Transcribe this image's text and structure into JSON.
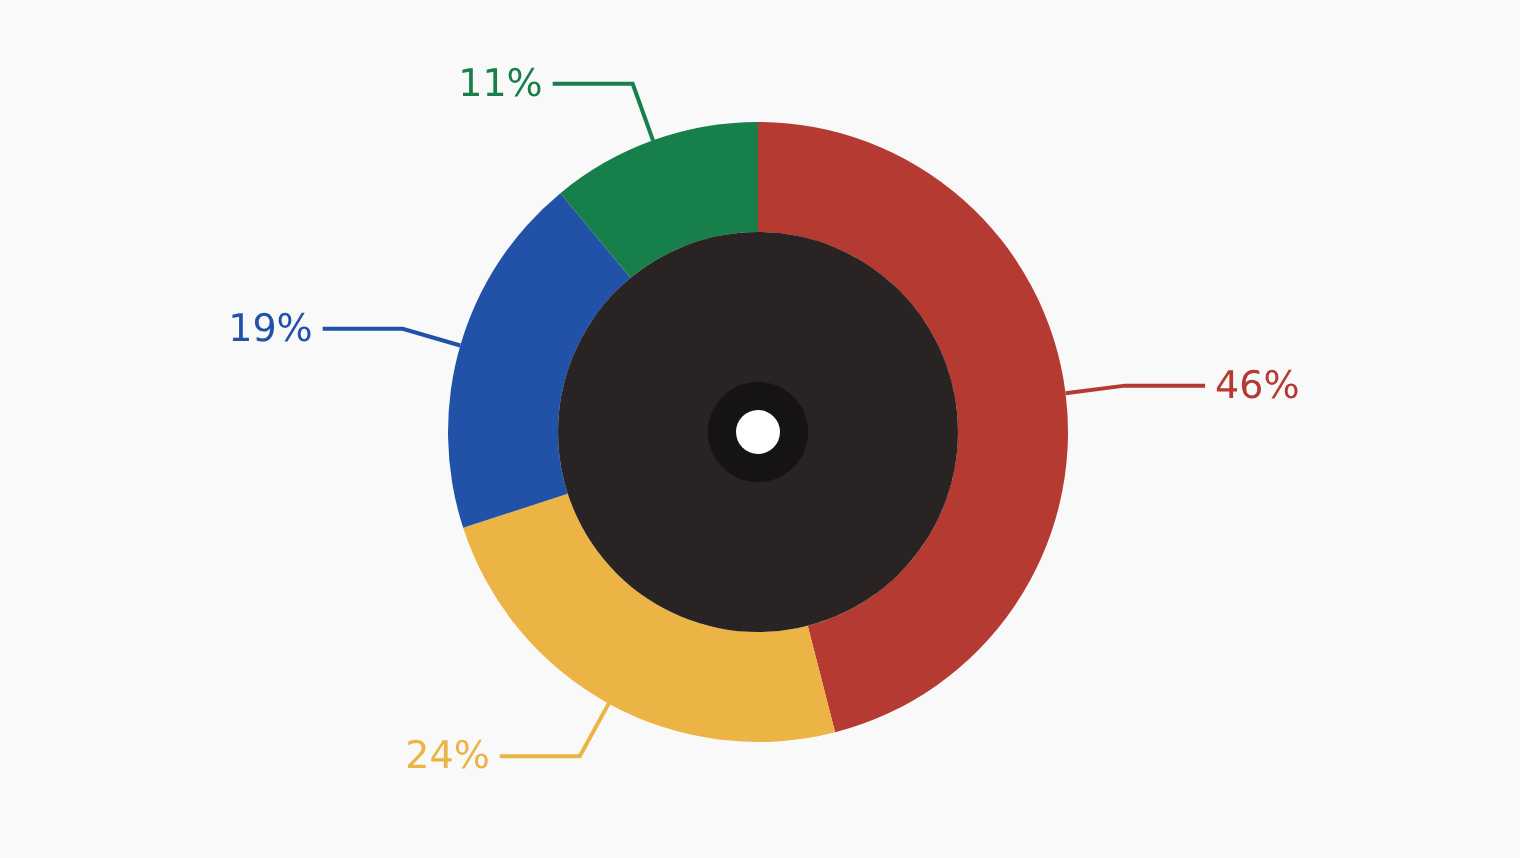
{
  "chart_data": {
    "type": "donut",
    "categories": [
      null,
      null,
      null,
      null
    ],
    "values": [
      46,
      24,
      19,
      11
    ],
    "colors": [
      "#b53a32",
      "#ecb444",
      "#2152a8",
      "#177f4a"
    ],
    "value_labels": [
      "46%",
      "24%",
      "19%",
      "11%"
    ]
  }
}
